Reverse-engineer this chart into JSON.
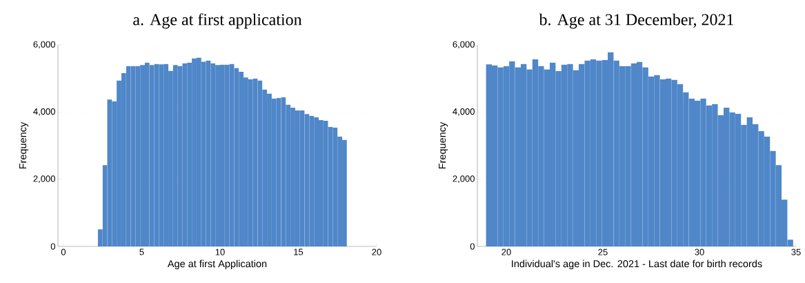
{
  "chart_data": [
    {
      "type": "histogram",
      "title": "a. Age at first application",
      "xlabel": "Age at first Application",
      "ylabel": "Frequency",
      "color": "#4f87c9",
      "grid": "y",
      "bins": [
        2.2,
        2.5,
        2.8,
        3.1,
        3.4,
        3.7,
        4.0,
        4.3,
        4.6,
        4.9,
        5.2,
        5.5,
        5.8,
        6.1,
        6.4,
        6.7,
        7.0,
        7.3,
        7.6,
        7.9,
        8.2,
        8.5,
        8.8,
        9.1,
        9.4,
        9.7,
        10.0,
        10.3,
        10.6,
        10.9,
        11.2,
        11.5,
        11.8,
        12.1,
        12.4,
        12.7,
        13.0,
        13.3,
        13.6,
        13.9,
        14.2,
        14.5,
        14.8,
        15.1,
        15.4,
        15.7,
        16.0,
        16.3,
        16.6,
        16.9,
        17.2,
        17.5,
        17.8,
        18.1
      ],
      "values": [
        510,
        2420,
        4370,
        4320,
        4940,
        5160,
        5370,
        5370,
        5370,
        5400,
        5470,
        5400,
        5430,
        5420,
        5430,
        5230,
        5400,
        5370,
        5450,
        5470,
        5600,
        5620,
        5500,
        5530,
        5450,
        5400,
        5410,
        5410,
        5430,
        5310,
        5200,
        5030,
        4980,
        5000,
        4940,
        4670,
        4550,
        4400,
        4420,
        4440,
        4220,
        4130,
        4050,
        4050,
        3940,
        3890,
        3840,
        3760,
        3740,
        3560,
        3540,
        3270,
        3170
      ],
      "xlim": [
        -0.35,
        20
      ],
      "ylim": [
        0,
        6000
      ],
      "xticks": [
        0,
        5,
        10,
        15,
        20
      ],
      "yticks": [
        0,
        {
          "value": 2000,
          "label": "2,000"
        },
        {
          "value": 4000,
          "label": "4,000"
        },
        {
          "value": 6000,
          "label": "6,000"
        }
      ]
    },
    {
      "type": "histogram",
      "title": "b. Age at 31 December, 2021",
      "xlabel": "Individual's age in Dec. 2021 - Last date for birth records",
      "ylabel": "Frequency",
      "color": "#4f87c9",
      "grid": "y",
      "bins": [
        18.95,
        19.25,
        19.55,
        19.85,
        20.15,
        20.45,
        20.75,
        21.05,
        21.35,
        21.65,
        21.95,
        22.25,
        22.55,
        22.85,
        23.15,
        23.45,
        23.75,
        24.05,
        24.35,
        24.65,
        24.95,
        25.25,
        25.55,
        25.85,
        26.15,
        26.45,
        26.75,
        27.05,
        27.35,
        27.65,
        27.95,
        28.25,
        28.55,
        28.85,
        29.15,
        29.45,
        29.75,
        30.05,
        30.35,
        30.65,
        30.95,
        31.25,
        31.55,
        31.85,
        32.15,
        32.45,
        32.75,
        33.05,
        33.35,
        33.65,
        33.95,
        34.25,
        34.55,
        34.85
      ],
      "values": [
        5420,
        5390,
        5330,
        5370,
        5510,
        5330,
        5430,
        5270,
        5570,
        5370,
        5270,
        5470,
        5220,
        5410,
        5430,
        5250,
        5430,
        5530,
        5570,
        5530,
        5550,
        5780,
        5530,
        5370,
        5370,
        5450,
        5490,
        5330,
        5060,
        5100,
        4980,
        5000,
        4960,
        4830,
        4590,
        4400,
        4340,
        4400,
        4200,
        4240,
        3910,
        4130,
        3990,
        3950,
        3620,
        3840,
        3640,
        3430,
        3270,
        2840,
        2420,
        1390,
        200
      ],
      "xlim": [
        18.5,
        35
      ],
      "ylim": [
        0,
        6000
      ],
      "xticks": [
        20,
        25,
        30,
        35
      ],
      "yticks": [
        0,
        {
          "value": 2000,
          "label": "2,000"
        },
        {
          "value": 4000,
          "label": "4,000"
        },
        {
          "value": 6000,
          "label": "6,000"
        }
      ]
    }
  ]
}
